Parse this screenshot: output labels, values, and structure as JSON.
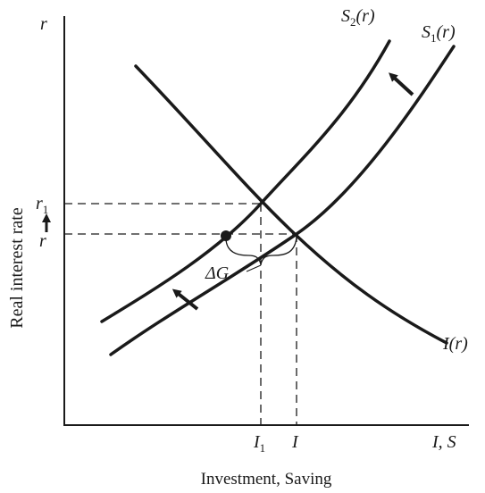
{
  "diagram": {
    "y_axis_top_label": "r",
    "y_axis_title": "Real interest rate",
    "x_axis_title": "Investment, Saving",
    "x_axis_end_label": "I, S",
    "tick_r1": {
      "base": "r",
      "sub": "1"
    },
    "tick_r": "r",
    "tick_I1": {
      "base": "I",
      "sub": "1"
    },
    "tick_I": "I",
    "curve_S2": {
      "base": "S",
      "sub": "2",
      "arg": "(r)"
    },
    "curve_S1": {
      "base": "S",
      "sub": "1",
      "arg": "(r)"
    },
    "curve_I": "I(r)",
    "delta_label": "ΔG"
  }
}
